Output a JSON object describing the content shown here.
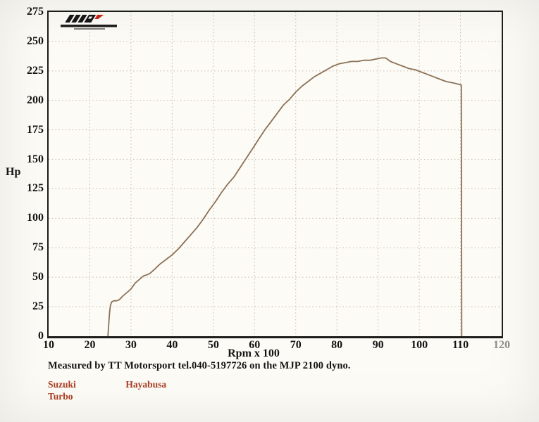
{
  "caption": {
    "text": "Measured by TT Motorsport tel.040-5197726 on the MJP 2100 dyno."
  },
  "vehicle": {
    "make": "Suzuki",
    "variant": "Turbo",
    "model": "Hayabusa",
    "label_color": "#a93c22"
  },
  "logo": {
    "name": "mjp-logo"
  },
  "chart_data": {
    "type": "line",
    "title": "",
    "xlabel": "Rpm x 100",
    "ylabel": "Hp",
    "xlim": [
      10,
      120
    ],
    "ylim": [
      0,
      275
    ],
    "x_ticks": [
      10,
      20,
      30,
      40,
      50,
      60,
      70,
      80,
      90,
      100,
      110,
      120
    ],
    "y_ticks": [
      0,
      25,
      50,
      75,
      100,
      125,
      150,
      175,
      200,
      225,
      250,
      275
    ],
    "grid": "dotted",
    "grid_color": "#c5b3a5",
    "legend": "none",
    "series": [
      {
        "name": "Suzuki Hayabusa Turbo",
        "color": "#8c7156",
        "points": [
          [
            24.4,
            0
          ],
          [
            24.6,
            10
          ],
          [
            24.8,
            20
          ],
          [
            25.0,
            26
          ],
          [
            25.3,
            29
          ],
          [
            25.8,
            30
          ],
          [
            26.5,
            30
          ],
          [
            27.2,
            31
          ],
          [
            28.0,
            34
          ],
          [
            29.0,
            37
          ],
          [
            30.0,
            40
          ],
          [
            31.0,
            45
          ],
          [
            32.0,
            48
          ],
          [
            33.0,
            51
          ],
          [
            33.8,
            52
          ],
          [
            34.5,
            53
          ],
          [
            35.5,
            56
          ],
          [
            37.0,
            61
          ],
          [
            38.5,
            65
          ],
          [
            40.0,
            69
          ],
          [
            41.5,
            74
          ],
          [
            43.0,
            80
          ],
          [
            44.5,
            86
          ],
          [
            46.0,
            92
          ],
          [
            47.5,
            99
          ],
          [
            49.0,
            107
          ],
          [
            50.5,
            114
          ],
          [
            52.0,
            122
          ],
          [
            53.5,
            129
          ],
          [
            55.0,
            135
          ],
          [
            56.5,
            143
          ],
          [
            58.0,
            151
          ],
          [
            59.5,
            159
          ],
          [
            61.0,
            167
          ],
          [
            62.5,
            175
          ],
          [
            64.0,
            182
          ],
          [
            65.5,
            189
          ],
          [
            67.0,
            196
          ],
          [
            68.5,
            201
          ],
          [
            70.0,
            207
          ],
          [
            71.5,
            212
          ],
          [
            73.0,
            216
          ],
          [
            74.5,
            220
          ],
          [
            76.0,
            223
          ],
          [
            77.5,
            226
          ],
          [
            79.0,
            229
          ],
          [
            80.5,
            231
          ],
          [
            82.0,
            232
          ],
          [
            83.5,
            233
          ],
          [
            85.0,
            233
          ],
          [
            86.5,
            234
          ],
          [
            88.0,
            234
          ],
          [
            89.3,
            235
          ],
          [
            90.8,
            236
          ],
          [
            91.8,
            236
          ],
          [
            93.0,
            233
          ],
          [
            94.5,
            231
          ],
          [
            96.0,
            229
          ],
          [
            97.5,
            227
          ],
          [
            99.0,
            226
          ],
          [
            100.5,
            224
          ],
          [
            102.0,
            222
          ],
          [
            103.5,
            220
          ],
          [
            105.0,
            218
          ],
          [
            106.5,
            216
          ],
          [
            108.0,
            215
          ],
          [
            109.2,
            214
          ],
          [
            110.2,
            213
          ],
          [
            110.3,
            0
          ]
        ]
      }
    ]
  }
}
